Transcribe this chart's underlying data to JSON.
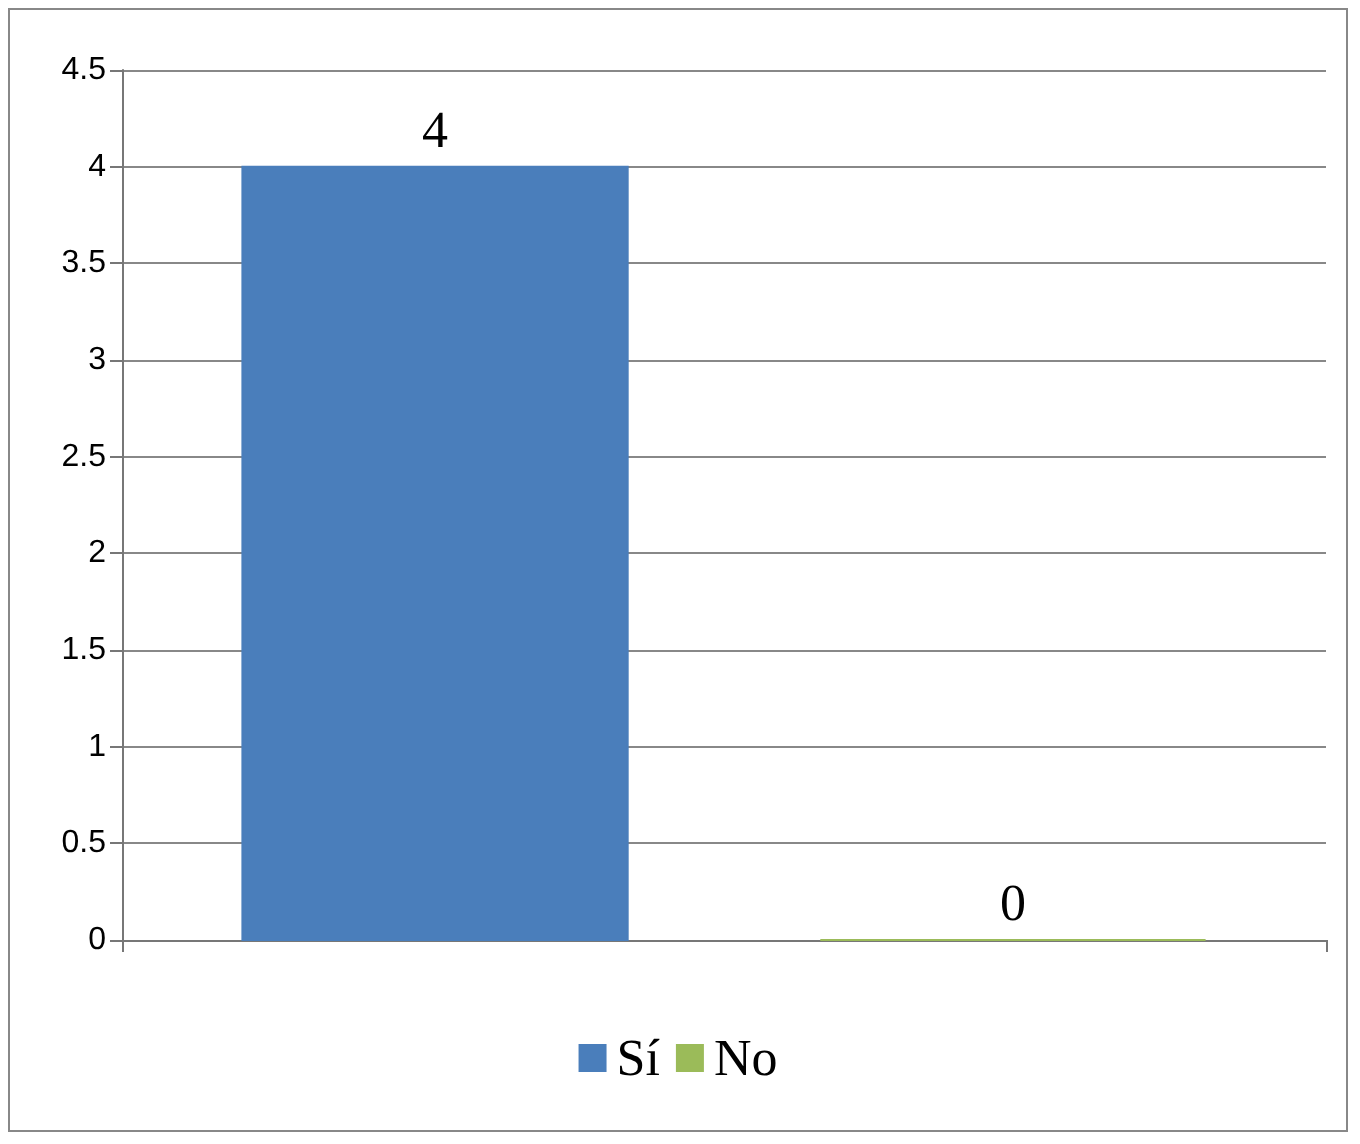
{
  "chart_data": {
    "type": "bar",
    "categories": [
      null
    ],
    "series": [
      {
        "name": "Sí",
        "color": "#4a7ebb",
        "values": [
          4
        ]
      },
      {
        "name": "No",
        "color": "#9bbb59",
        "values": [
          0
        ]
      }
    ],
    "ylim": [
      0,
      4.5
    ],
    "yticks": [
      0,
      0.5,
      1,
      1.5,
      2,
      2.5,
      3,
      3.5,
      4,
      4.5
    ],
    "grid": "y",
    "legend": "bottom",
    "data_labels": true
  }
}
